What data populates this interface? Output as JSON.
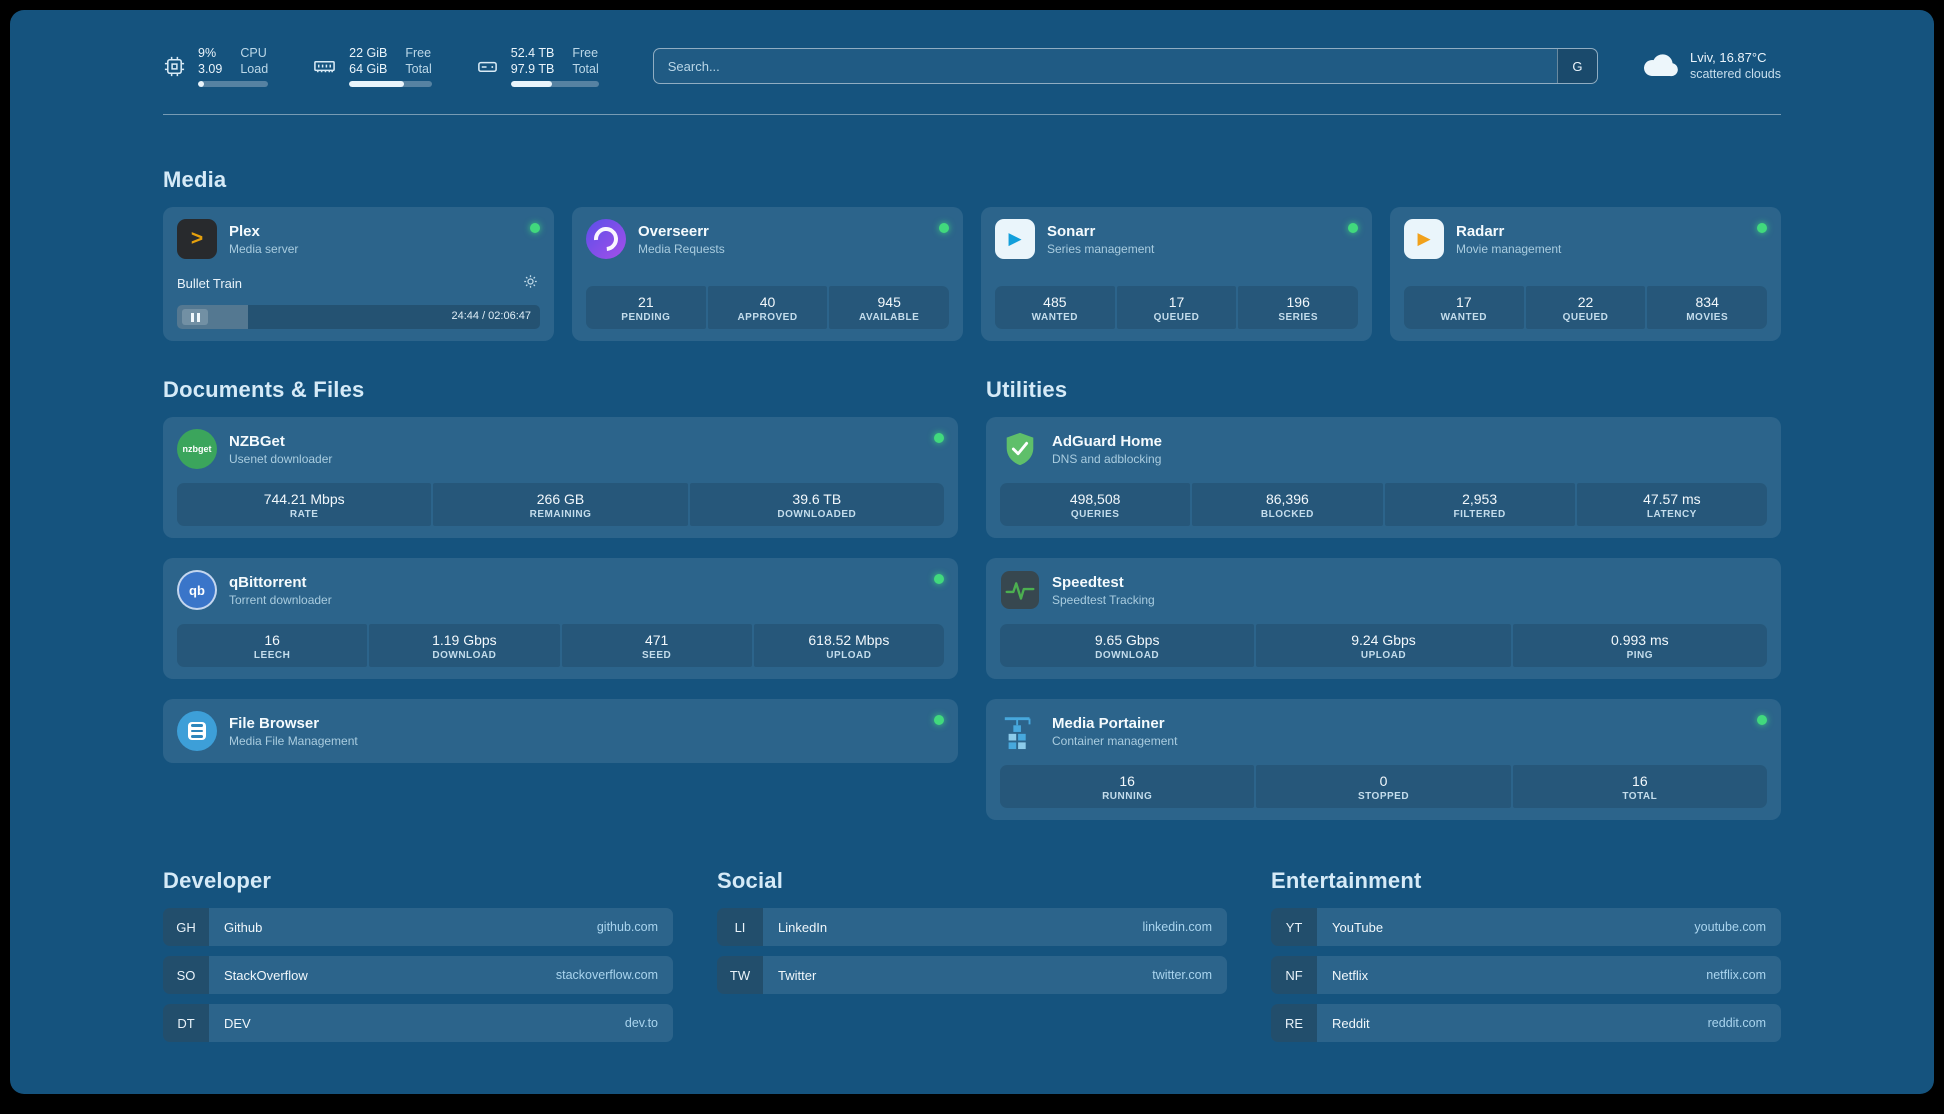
{
  "colors": {
    "background": "#15537E",
    "card": "rgba(255,255,255,0.10)",
    "status_online": "#41D97D",
    "heading_text": "#D5EAF7",
    "url_text": "#A9D4EE"
  },
  "topbar": {
    "cpu": {
      "value_top": "9%",
      "label_top": "CPU",
      "value_bottom": "3.09",
      "label_bottom": "Load",
      "progress_percent": 9
    },
    "memory": {
      "value_top": "22 GiB",
      "label_top": "Free",
      "value_bottom": "64 GiB",
      "label_bottom": "Total",
      "progress_percent": 66
    },
    "disk": {
      "value_top": "52.4 TB",
      "label_top": "Free",
      "value_bottom": "97.9 TB",
      "label_bottom": "Total",
      "progress_percent": 47
    },
    "search": {
      "placeholder": "Search...",
      "button_label": "G"
    },
    "weather": {
      "location": "Lviv, 16.87°C",
      "condition": "scattered clouds"
    }
  },
  "media": {
    "title": "Media",
    "plex": {
      "name": "Plex",
      "subtitle": "Media server",
      "icon_glyph": ">",
      "now_playing": "Bullet Train",
      "time": "24:44 / 02:06:47",
      "progress_percent": 19.5
    },
    "overseerr": {
      "name": "Overseerr",
      "subtitle": "Media Requests",
      "stats": [
        {
          "value": "21",
          "label": "PENDING"
        },
        {
          "value": "40",
          "label": "APPROVED"
        },
        {
          "value": "945",
          "label": "AVAILABLE"
        }
      ]
    },
    "sonarr": {
      "name": "Sonarr",
      "subtitle": "Series management",
      "icon_glyph": "▶",
      "stats": [
        {
          "value": "485",
          "label": "WANTED"
        },
        {
          "value": "17",
          "label": "QUEUED"
        },
        {
          "value": "196",
          "label": "SERIES"
        }
      ]
    },
    "radarr": {
      "name": "Radarr",
      "subtitle": "Movie management",
      "icon_glyph": "▶",
      "stats": [
        {
          "value": "17",
          "label": "WANTED"
        },
        {
          "value": "22",
          "label": "QUEUED"
        },
        {
          "value": "834",
          "label": "MOVIES"
        }
      ]
    }
  },
  "documents": {
    "title": "Documents & Files",
    "nzbget": {
      "name": "NZBGet",
      "subtitle": "Usenet downloader",
      "icon_glyph": "nzbget",
      "stats": [
        {
          "value": "744.21 Mbps",
          "label": "RATE"
        },
        {
          "value": "266 GB",
          "label": "REMAINING"
        },
        {
          "value": "39.6 TB",
          "label": "DOWNLOADED"
        }
      ]
    },
    "qbittorrent": {
      "name": "qBittorrent",
      "subtitle": "Torrent downloader",
      "icon_glyph": "qb",
      "stats": [
        {
          "value": "16",
          "label": "LEECH"
        },
        {
          "value": "1.19 Gbps",
          "label": "DOWNLOAD"
        },
        {
          "value": "471",
          "label": "SEED"
        },
        {
          "value": "618.52 Mbps",
          "label": "UPLOAD"
        }
      ]
    },
    "filebrowser": {
      "name": "File Browser",
      "subtitle": "Media File Management"
    }
  },
  "utilities": {
    "title": "Utilities",
    "adguard": {
      "name": "AdGuard Home",
      "subtitle": "DNS and adblocking",
      "stats": [
        {
          "value": "498,508",
          "label": "QUERIES"
        },
        {
          "value": "86,396",
          "label": "BLOCKED"
        },
        {
          "value": "2,953",
          "label": "FILTERED"
        },
        {
          "value": "47.57 ms",
          "label": "LATENCY"
        }
      ]
    },
    "speedtest": {
      "name": "Speedtest",
      "subtitle": "Speedtest Tracking",
      "stats": [
        {
          "value": "9.65 Gbps",
          "label": "DOWNLOAD"
        },
        {
          "value": "9.24 Gbps",
          "label": "UPLOAD"
        },
        {
          "value": "0.993 ms",
          "label": "PING"
        }
      ]
    },
    "portainer": {
      "name": "Media Portainer",
      "subtitle": "Container management",
      "stats": [
        {
          "value": "16",
          "label": "RUNNING"
        },
        {
          "value": "0",
          "label": "STOPPED"
        },
        {
          "value": "16",
          "label": "TOTAL"
        }
      ]
    }
  },
  "bookmarks": {
    "developer": {
      "title": "Developer",
      "items": [
        {
          "abbr": "GH",
          "name": "Github",
          "url": "github.com"
        },
        {
          "abbr": "SO",
          "name": "StackOverflow",
          "url": "stackoverflow.com"
        },
        {
          "abbr": "DT",
          "name": "DEV",
          "url": "dev.to"
        }
      ]
    },
    "social": {
      "title": "Social",
      "items": [
        {
          "abbr": "LI",
          "name": "LinkedIn",
          "url": "linkedin.com"
        },
        {
          "abbr": "TW",
          "name": "Twitter",
          "url": "twitter.com"
        }
      ]
    },
    "entertainment": {
      "title": "Entertainment",
      "items": [
        {
          "abbr": "YT",
          "name": "YouTube",
          "url": "youtube.com"
        },
        {
          "abbr": "NF",
          "name": "Netflix",
          "url": "netflix.com"
        },
        {
          "abbr": "RE",
          "name": "Reddit",
          "url": "reddit.com"
        }
      ]
    }
  }
}
